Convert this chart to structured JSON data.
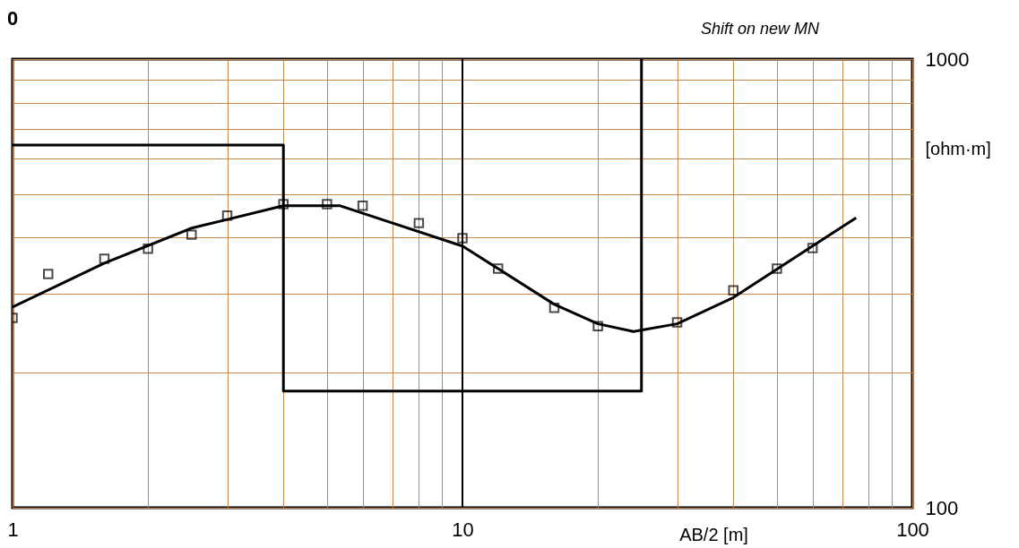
{
  "chart_data": {
    "type": "scatter",
    "title": "0",
    "xlabel": "AB/2 [m]",
    "ylabel": "[ohm·m]",
    "annotations": [
      "Shift on new MN"
    ],
    "log": "xy",
    "grid": true,
    "xlim": [
      1,
      100
    ],
    "ylim": [
      100,
      1000
    ],
    "xticks": [
      1,
      {
        "value": 2,
        "label": null
      },
      {
        "value": 3,
        "label": null
      },
      {
        "value": 4,
        "label": null
      },
      {
        "value": 5,
        "label": null
      },
      {
        "value": 6,
        "label": null
      },
      {
        "value": 7,
        "label": null
      },
      {
        "value": 8,
        "label": null
      },
      {
        "value": 9,
        "label": null
      },
      10,
      {
        "value": 20,
        "label": null
      },
      {
        "value": 30,
        "label": null
      },
      {
        "value": 40,
        "label": null
      },
      {
        "value": 50,
        "label": null
      },
      {
        "value": 60,
        "label": null
      },
      {
        "value": 70,
        "label": null
      },
      {
        "value": 80,
        "label": null
      },
      {
        "value": 90,
        "label": null
      },
      100
    ],
    "yticks": [
      100,
      {
        "value": 200,
        "label": null
      },
      {
        "value": 300,
        "label": null
      },
      {
        "value": 400,
        "label": null
      },
      {
        "value": 500,
        "label": null
      },
      {
        "value": 600,
        "label": null
      },
      {
        "value": 700,
        "label": null
      },
      {
        "value": 800,
        "label": null
      },
      {
        "value": 900,
        "label": null
      },
      1000
    ],
    "ref_lines": [
      {
        "axis": "x",
        "value": 10,
        "color": "#000000"
      }
    ],
    "series": [
      {
        "color": "#000000",
        "marker": "square",
        "x": [
          1,
          1.2,
          1.6,
          2,
          2.5,
          3,
          4,
          5,
          6,
          8,
          10,
          12,
          16,
          20,
          30,
          40,
          50,
          60
        ],
        "values": [
          265,
          332,
          359,
          378,
          406,
          448,
          475,
          475,
          471,
          431,
          399,
          341,
          279,
          254,
          259,
          305,
          341,
          379
        ]
      },
      {
        "type": "line",
        "color": "#000000",
        "x": [
          1,
          1.6,
          2.5,
          4,
          5.35,
          10,
          16,
          20,
          24,
          30,
          40,
          75
        ],
        "values": [
          280,
          351,
          420,
          471,
          471,
          383,
          284,
          257,
          247,
          257,
          294,
          443
        ]
      },
      {
        "type": "line",
        "color": "#000000",
        "x": [
          1,
          4,
          4,
          25,
          25
        ],
        "values": [
          643,
          643,
          182,
          182,
          1000
        ]
      }
    ]
  }
}
